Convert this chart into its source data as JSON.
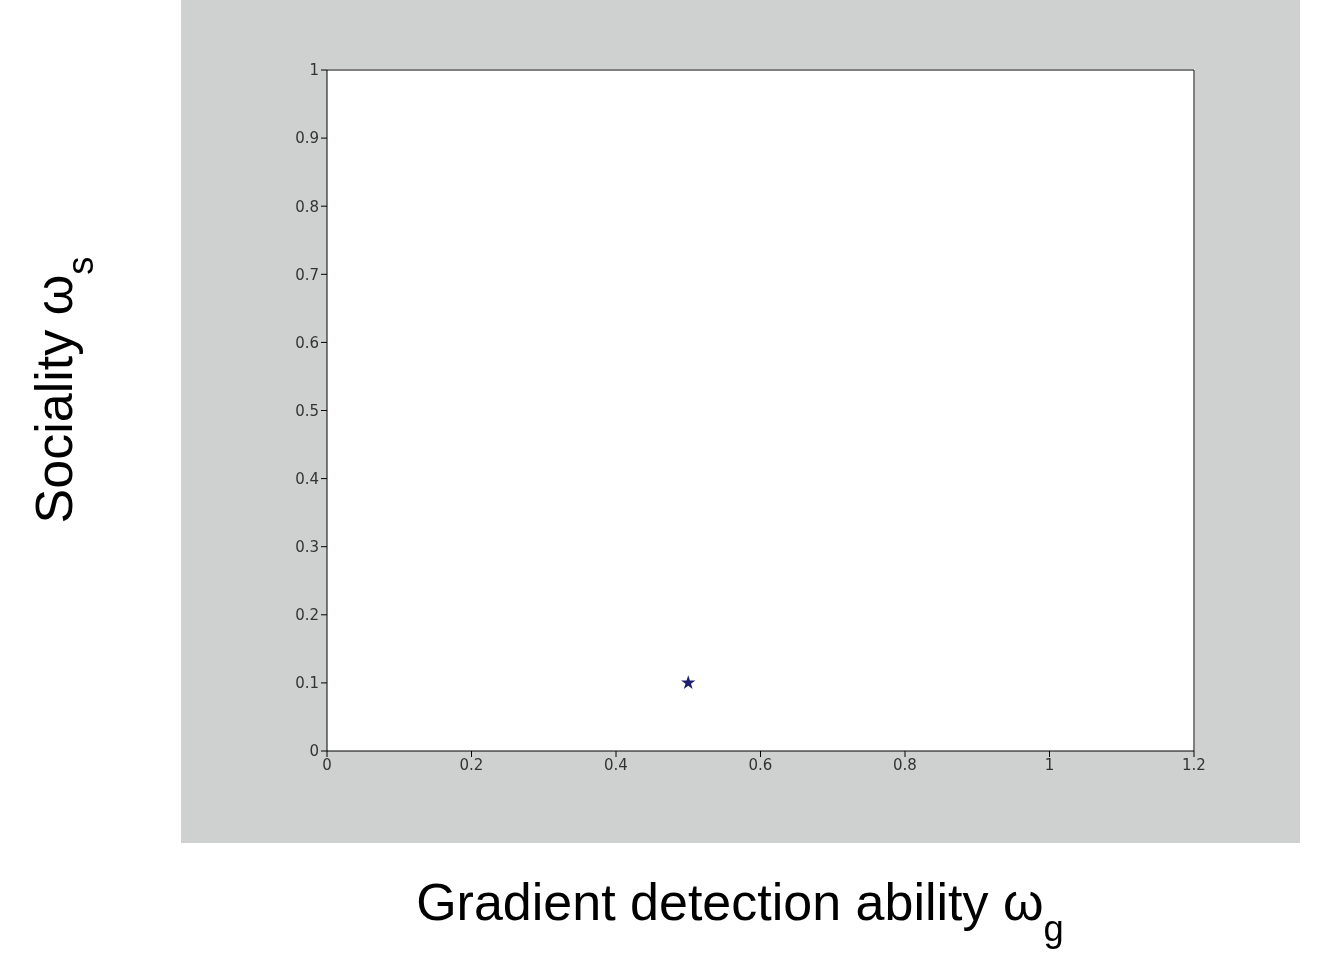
{
  "chart_data": {
    "type": "scatter",
    "xlabel": "Gradient detection ability ω$_{g}$",
    "ylabel": "Sociality ω$_{s}$",
    "x": [
      0.5
    ],
    "values": [
      0.1
    ],
    "color": "#1f1f6f",
    "marker": "star",
    "xlim": [
      0,
      1.2
    ],
    "ylim": [
      0,
      1
    ],
    "xticks": [
      0,
      0.2,
      0.4,
      0.6,
      0.8,
      1,
      1.2
    ],
    "yticks": [
      0,
      0.1,
      0.2,
      0.3,
      0.4,
      0.5,
      0.6,
      0.7,
      0.8,
      0.9,
      1
    ]
  }
}
